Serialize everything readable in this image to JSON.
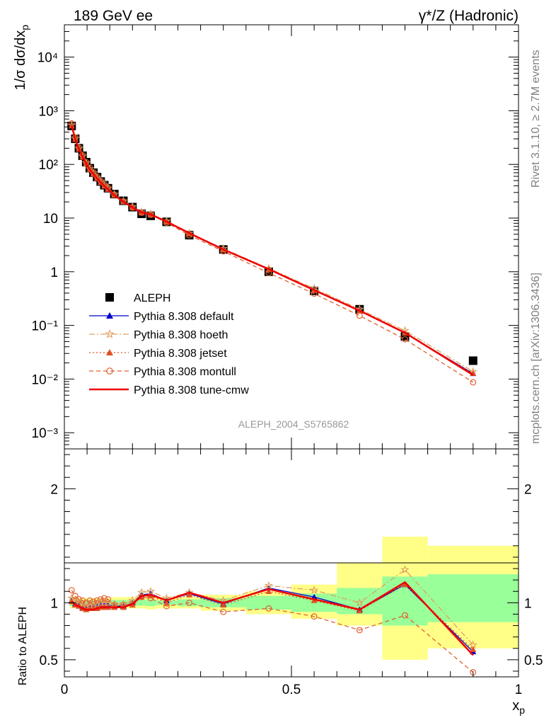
{
  "header": {
    "left_label": "189 GeV ee",
    "right_label": "γ*/Z (Hadronic)"
  },
  "side_labels": {
    "rivet": "Rivet 3.1.10, ≥ 2.7M events",
    "mcplots": "mcplots.cern.ch [arXiv:1306.3436]"
  },
  "watermark": "ALEPH_2004_S5765862",
  "chart_data": [
    {
      "type": "scatter",
      "title": "",
      "ylabel": "1/σ dσ/dx_p",
      "xlabel": "x_p",
      "y_scale": "log",
      "xlim": [
        0,
        1
      ],
      "ylim": [
        0.0005,
        40000
      ],
      "y_ticks": [
        {
          "value": 0.001,
          "label": "10⁻³"
        },
        {
          "value": 0.01,
          "label": "10⁻²"
        },
        {
          "value": 0.1,
          "label": "10⁻¹"
        },
        {
          "value": 1,
          "label": "1"
        },
        {
          "value": 10,
          "label": "10"
        },
        {
          "value": 100,
          "label": "10²"
        },
        {
          "value": 1000,
          "label": "10³"
        },
        {
          "value": 10000,
          "label": "10⁴"
        }
      ],
      "x_ticks": [
        0,
        0.5,
        1
      ],
      "legend_position": "bottom-left",
      "x": [
        0.016,
        0.024,
        0.032,
        0.04,
        0.048,
        0.056,
        0.064,
        0.072,
        0.08,
        0.088,
        0.096,
        0.11,
        0.13,
        0.15,
        0.17,
        0.19,
        0.225,
        0.275,
        0.35,
        0.45,
        0.55,
        0.65,
        0.75,
        0.9
      ],
      "series": [
        {
          "name": "ALEPH",
          "color": "#000000",
          "marker": "square",
          "values": [
            520,
            300,
            200,
            145,
            110,
            85,
            70,
            58,
            48,
            41,
            36,
            28,
            21,
            16,
            12,
            11,
            8.5,
            4.8,
            2.6,
            1.0,
            0.44,
            0.2,
            0.062,
            0.022
          ]
        },
        {
          "name": "Pythia 8.308 default",
          "color": "#0000cc",
          "marker": "triangle",
          "dash": "",
          "values": [
            530,
            296,
            195,
            139,
            104,
            81,
            67,
            56,
            47,
            40,
            35,
            27,
            20.4,
            16,
            12.8,
            11.9,
            8.6,
            5.2,
            2.6,
            1.13,
            0.46,
            0.19,
            0.072,
            0.0127
          ]
        },
        {
          "name": "Pythia 8.308 hoeth",
          "color": "#e0a060",
          "marker": "star",
          "dash": "8,3,2,3",
          "values": [
            540,
            306,
            200,
            143,
            107,
            83,
            69,
            57,
            48,
            41,
            36,
            27.7,
            20.8,
            16.4,
            13,
            12,
            8.8,
            5.2,
            2.7,
            1.15,
            0.49,
            0.2,
            0.08,
            0.0138
          ]
        },
        {
          "name": "Pythia 8.308 jetset",
          "color": "#e05020",
          "marker": "triangle",
          "dash": "2,3",
          "values": [
            526,
            294,
            193,
            137,
            103,
            80,
            66,
            55,
            46,
            39.5,
            34.5,
            26.7,
            20.2,
            15.7,
            12.6,
            11.6,
            8.5,
            5.1,
            2.55,
            1.1,
            0.45,
            0.185,
            0.072,
            0.0128
          ]
        },
        {
          "name": "Pythia 8.308 montull",
          "color": "#e06030",
          "marker": "circle",
          "dash": "6,4",
          "values": [
            580,
            318,
            206,
            148,
            110,
            87,
            71,
            59,
            49.5,
            42.5,
            37,
            27.5,
            20.5,
            15.8,
            12.6,
            11.5,
            8.2,
            4.8,
            2.4,
            0.95,
            0.39,
            0.152,
            0.055,
            0.0087
          ]
        },
        {
          "name": "Pythia 8.308 tune-cmw",
          "color": "#ee0000",
          "marker": "none",
          "dash": "",
          "values": [
            527,
            293,
            194,
            138,
            103,
            80,
            66,
            55,
            46,
            39.5,
            34.5,
            26.7,
            20.2,
            15.8,
            12.7,
            11.7,
            8.6,
            5.25,
            2.6,
            1.12,
            0.455,
            0.188,
            0.073,
            0.0119
          ]
        }
      ]
    },
    {
      "type": "line",
      "title": "",
      "ylabel": "Ratio to ALEPH",
      "xlabel": "x_p",
      "xlim": [
        0,
        1
      ],
      "ylim": [
        0.35,
        2.35
      ],
      "y_ticks": [
        0.5,
        1,
        2
      ],
      "x_tick_labels": [
        "0",
        "0.5",
        "1"
      ],
      "bands": [
        {
          "xlo": 0.012,
          "xhi": 0.02,
          "inner": [
            0.97,
            1.03
          ],
          "outer": [
            0.95,
            1.05
          ]
        },
        {
          "xlo": 0.02,
          "xhi": 0.1,
          "inner": [
            0.98,
            1.02
          ],
          "outer": [
            0.96,
            1.04
          ]
        },
        {
          "xlo": 0.1,
          "xhi": 0.18,
          "inner": [
            0.975,
            1.025
          ],
          "outer": [
            0.95,
            1.05
          ]
        },
        {
          "xlo": 0.18,
          "xhi": 0.2,
          "inner": [
            0.97,
            1.03
          ],
          "outer": [
            0.94,
            1.06
          ]
        },
        {
          "xlo": 0.2,
          "xhi": 0.25,
          "inner": [
            0.98,
            1.02
          ],
          "outer": [
            0.95,
            1.05
          ]
        },
        {
          "xlo": 0.25,
          "xhi": 0.3,
          "inner": [
            0.97,
            1.03
          ],
          "outer": [
            0.95,
            1.05
          ]
        },
        {
          "xlo": 0.3,
          "xhi": 0.4,
          "inner": [
            0.96,
            1.04
          ],
          "outer": [
            0.93,
            1.07
          ]
        },
        {
          "xlo": 0.4,
          "xhi": 0.5,
          "inner": [
            0.94,
            1.06
          ],
          "outer": [
            0.9,
            1.1
          ]
        },
        {
          "xlo": 0.5,
          "xhi": 0.6,
          "inner": [
            0.92,
            1.08
          ],
          "outer": [
            0.86,
            1.16
          ]
        },
        {
          "xlo": 0.6,
          "xhi": 0.7,
          "inner": [
            0.9,
            1.13
          ],
          "outer": [
            0.8,
            1.35
          ]
        },
        {
          "xlo": 0.7,
          "xhi": 0.8,
          "inner": [
            0.8,
            1.23
          ],
          "outer": [
            0.5,
            1.58
          ]
        },
        {
          "xlo": 0.8,
          "xhi": 1.0,
          "inner": [
            0.83,
            1.25
          ],
          "outer": [
            0.6,
            1.5
          ]
        }
      ],
      "x": [
        0.016,
        0.024,
        0.032,
        0.04,
        0.048,
        0.056,
        0.064,
        0.072,
        0.08,
        0.088,
        0.096,
        0.11,
        0.13,
        0.15,
        0.17,
        0.19,
        0.225,
        0.275,
        0.35,
        0.45,
        0.55,
        0.65,
        0.75,
        0.9
      ],
      "series": [
        {
          "name": "Pythia 8.308 default",
          "color": "#0000cc",
          "marker": "triangle",
          "dash": "",
          "values": [
            1.02,
            0.99,
            0.98,
            0.96,
            0.95,
            0.96,
            0.96,
            0.97,
            0.98,
            0.98,
            0.98,
            0.97,
            0.97,
            1.0,
            1.07,
            1.08,
            1.02,
            1.08,
            0.99,
            1.13,
            1.05,
            0.94,
            1.16,
            0.57
          ]
        },
        {
          "name": "Pythia 8.308 hoeth",
          "color": "#e0a060",
          "marker": "star",
          "dash": "8,3,2,3",
          "values": [
            1.04,
            1.02,
            1.0,
            0.99,
            0.97,
            0.98,
            0.98,
            0.99,
            1.0,
            1.0,
            1.0,
            0.99,
            0.99,
            1.02,
            1.09,
            1.1,
            1.04,
            1.09,
            1.02,
            1.15,
            1.11,
            1.0,
            1.29,
            0.63
          ]
        },
        {
          "name": "Pythia 8.308 jetset",
          "color": "#e05020",
          "marker": "triangle",
          "dash": "2,3",
          "values": [
            1.01,
            0.98,
            0.97,
            0.95,
            0.94,
            0.95,
            0.95,
            0.95,
            0.96,
            0.96,
            0.96,
            0.96,
            0.96,
            0.98,
            1.05,
            1.06,
            1.0,
            1.07,
            0.98,
            1.1,
            1.02,
            0.93,
            1.16,
            0.59
          ]
        },
        {
          "name": "Pythia 8.308 montull",
          "color": "#e06030",
          "marker": "circle",
          "dash": "6,4",
          "values": [
            1.11,
            1.06,
            1.03,
            1.02,
            1.0,
            1.02,
            1.01,
            1.02,
            1.03,
            1.04,
            1.03,
            0.98,
            0.98,
            0.99,
            1.05,
            1.04,
            0.97,
            1.0,
            0.92,
            0.95,
            0.88,
            0.76,
            0.89,
            0.39
          ]
        },
        {
          "name": "Pythia 8.308 tune-cmw",
          "color": "#ee0000",
          "marker": "none",
          "dash": "",
          "values": [
            1.01,
            0.98,
            0.97,
            0.95,
            0.94,
            0.94,
            0.94,
            0.95,
            0.96,
            0.96,
            0.96,
            0.96,
            0.96,
            0.99,
            1.06,
            1.07,
            1.02,
            1.09,
            1.0,
            1.12,
            1.03,
            0.94,
            1.18,
            0.54
          ]
        }
      ]
    }
  ]
}
